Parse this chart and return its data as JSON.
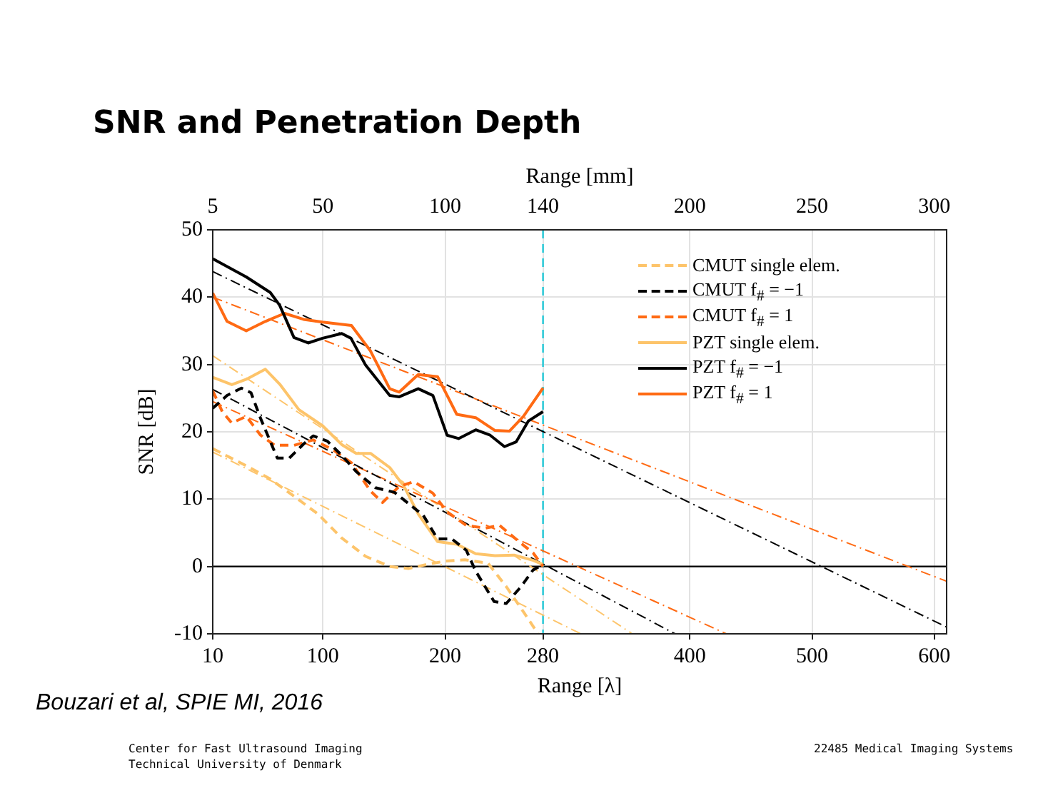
{
  "chart_data": {
    "type": "line",
    "title": "SNR and Penetration Depth",
    "xlabel": "Range [λ]",
    "ylabel": "SNR [dB]",
    "x2label": "Range [mm]",
    "xlim": [
      10,
      610
    ],
    "xticks": [
      10,
      100,
      200,
      280,
      400,
      500,
      600
    ],
    "ylim": [
      -10,
      50
    ],
    "yticks": [
      -10,
      0,
      10,
      20,
      30,
      40,
      50
    ],
    "x2lim": [
      5,
      305
    ],
    "x2ticks": [
      5,
      50,
      100,
      140,
      200,
      250,
      300
    ],
    "grid": true,
    "legend": "top right",
    "ref_lines": [
      {
        "axis": "y",
        "value": 0,
        "color": "#000000",
        "line_style": "solid"
      },
      {
        "axis": "x",
        "value": 280,
        "color": "#22c8d8",
        "line_style": "dashed"
      }
    ],
    "annotations": [
      "Bouzari et al, SPIE MI, 2016",
      "Center for Fast Ultrasound Imaging",
      "Technical University of Denmark",
      "22485 Medical Imaging Systems"
    ],
    "series": [
      {
        "name": "CMUT single elem.",
        "color": "#fdc46a",
        "line_style": "dashed",
        "x": [
          10,
          37,
          57,
          76,
          96,
          115,
          135,
          155,
          170,
          185,
          200,
          216,
          235,
          250,
          265,
          276
        ],
        "values": [
          17.5,
          15,
          13,
          10.5,
          7.8,
          4.3,
          1.5,
          0,
          -0.3,
          0.3,
          0.8,
          1,
          0.5,
          -3,
          -7,
          -10
        ]
      },
      {
        "name": "CMUT f$_{#}$ = −1",
        "color": "#000000",
        "line_style": "dashed",
        "x": [
          10,
          21.7,
          33.5,
          41.3,
          49.1,
          62.8,
          72.6,
          84.3,
          92.1,
          103.8,
          115.5,
          127.3,
          143,
          158.6,
          170.4,
          182.1,
          193.8,
          205.5,
          217.3,
          225,
          240,
          250,
          262,
          272,
          280
        ],
        "values": [
          23.5,
          25.4,
          26.5,
          25.8,
          22,
          16.1,
          16.1,
          18.2,
          19.4,
          18.6,
          16.5,
          14.1,
          11.7,
          11,
          9.3,
          7.6,
          4.1,
          4.1,
          2.4,
          -0.7,
          -5.2,
          -5.5,
          -3,
          -0.5,
          0.3
        ]
      },
      {
        "name": "CMUT f$_{#}$ = 1",
        "color": "#ff6a13",
        "line_style": "dashed",
        "x": [
          10,
          17.8,
          25.6,
          37.4,
          49.1,
          60.8,
          76.4,
          92.1,
          107.7,
          123.4,
          139,
          148.8,
          162.5,
          174.3,
          189.9,
          201.6,
          217.3,
          232.9,
          244.6,
          260.3,
          272,
          280
        ],
        "values": [
          26.1,
          23,
          21.3,
          22.3,
          19.5,
          18,
          18,
          18.8,
          17.4,
          15.4,
          11.2,
          9.5,
          11.9,
          12.6,
          10.9,
          8.1,
          6.1,
          5.7,
          6.1,
          3.7,
          2,
          0
        ]
      },
      {
        "name": "PZT single elem.",
        "color": "#fdc46a",
        "line_style": "solid",
        "x": [
          10,
          25.6,
          37.4,
          53,
          64.7,
          80.4,
          99.8,
          115.5,
          127.3,
          139,
          154.7,
          166.4,
          178,
          193.8,
          209.5,
          225,
          240.7,
          256.4,
          272,
          280
        ],
        "values": [
          28.1,
          27,
          27.8,
          29.3,
          27.1,
          23.3,
          20.9,
          18.1,
          16.8,
          16.8,
          14.7,
          11.9,
          7.8,
          3.7,
          3.3,
          1.9,
          1.6,
          1.7,
          0.9,
          0.3
        ]
      },
      {
        "name": "PZT f$_{#}$ = −1",
        "color": "#000000",
        "line_style": "solid",
        "x": [
          10,
          37.4,
          57,
          64.7,
          76.4,
          88,
          99.8,
          115.5,
          123,
          135,
          154.7,
          162.5,
          178,
          190,
          201.6,
          211,
          225,
          236.8,
          248.5,
          258,
          268,
          280
        ],
        "values": [
          45.7,
          43,
          40.7,
          38.8,
          34,
          33.2,
          33.9,
          34.6,
          33.9,
          29.9,
          25.4,
          25.2,
          26.4,
          25.4,
          19.5,
          19,
          20.3,
          19.5,
          17.8,
          18.5,
          21.6,
          23
        ]
      },
      {
        "name": "PZT f$_{#}$ = 1",
        "color": "#ff6a13",
        "line_style": "solid",
        "x": [
          10,
          21.7,
          37.4,
          53,
          68.7,
          84.3,
          99.8,
          123.4,
          139,
          154.7,
          162.5,
          178,
          193.8,
          209.5,
          225,
          240.7,
          252.5,
          264,
          280
        ],
        "values": [
          40.6,
          36.4,
          35,
          36.4,
          37.6,
          36.7,
          36.3,
          35.8,
          32,
          26.4,
          25.9,
          28.5,
          28.2,
          22.6,
          22.1,
          20.2,
          20.1,
          22.3,
          26.5
        ]
      },
      {
        "color": "#000000",
        "line_style": "dashdot",
        "x": [
          10,
          610
        ],
        "values": [
          43.8,
          -9
        ]
      },
      {
        "color": "#ff6a13",
        "line_style": "dashdot",
        "x": [
          10,
          610
        ],
        "values": [
          40,
          -2.2
        ]
      },
      {
        "color": "#000000",
        "line_style": "dashdot",
        "x": [
          10,
          388
        ],
        "values": [
          26.3,
          -10
        ]
      },
      {
        "color": "#ff6a13",
        "line_style": "dashdot",
        "x": [
          10,
          430
        ],
        "values": [
          24.5,
          -10
        ]
      },
      {
        "color": "#fdc46a",
        "line_style": "dashdot",
        "x": [
          10,
          353
        ],
        "values": [
          31.3,
          -10
        ]
      },
      {
        "color": "#fdc46a",
        "line_style": "dashdot",
        "x": [
          10,
          311
        ],
        "values": [
          17,
          -10
        ]
      }
    ]
  }
}
